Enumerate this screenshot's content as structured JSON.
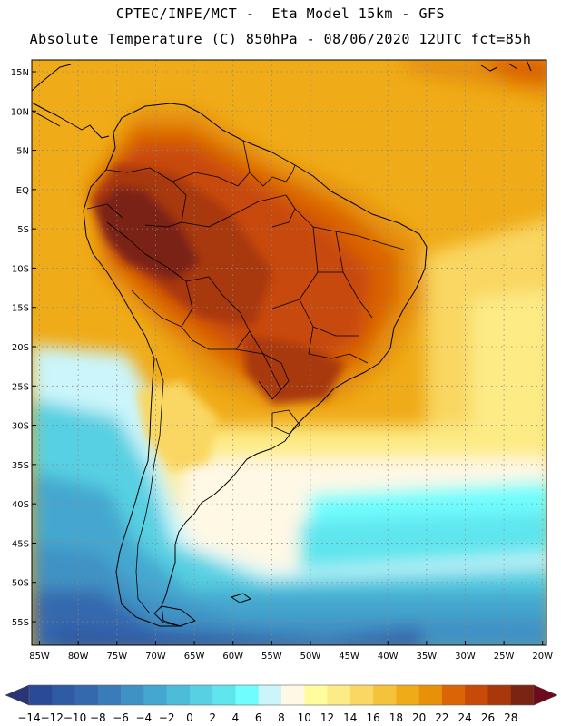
{
  "header": {
    "line1": "CPTEC/INPE/MCT -  Eta Model 15km - GFS",
    "line2": "Absolute Temperature (C) 850hPa - 08/06/2020 12UTC fct=85h"
  },
  "map": {
    "lat_range": [
      -58,
      16.5
    ],
    "lon_range": [
      -86,
      -19.5
    ],
    "lat_ticks": [
      {
        "value": 15,
        "label": "15N"
      },
      {
        "value": 10,
        "label": "10N"
      },
      {
        "value": 5,
        "label": "5N"
      },
      {
        "value": 0,
        "label": "EQ"
      },
      {
        "value": -5,
        "label": "5S"
      },
      {
        "value": -10,
        "label": "10S"
      },
      {
        "value": -15,
        "label": "15S"
      },
      {
        "value": -20,
        "label": "20S"
      },
      {
        "value": -25,
        "label": "25S"
      },
      {
        "value": -30,
        "label": "30S"
      },
      {
        "value": -35,
        "label": "35S"
      },
      {
        "value": -40,
        "label": "40S"
      },
      {
        "value": -45,
        "label": "45S"
      },
      {
        "value": -50,
        "label": "50S"
      },
      {
        "value": -55,
        "label": "55S"
      }
    ],
    "lon_ticks": [
      {
        "value": -85,
        "label": "85W"
      },
      {
        "value": -80,
        "label": "80W"
      },
      {
        "value": -75,
        "label": "75W"
      },
      {
        "value": -70,
        "label": "70W"
      },
      {
        "value": -65,
        "label": "65W"
      },
      {
        "value": -60,
        "label": "60W"
      },
      {
        "value": -55,
        "label": "55W"
      },
      {
        "value": -50,
        "label": "50W"
      },
      {
        "value": -45,
        "label": "45W"
      },
      {
        "value": -40,
        "label": "40W"
      },
      {
        "value": -35,
        "label": "35W"
      },
      {
        "value": -30,
        "label": "30W"
      },
      {
        "value": -25,
        "label": "25W"
      },
      {
        "value": -20,
        "label": "20W"
      }
    ]
  },
  "colorbar": {
    "low_color": "#2a3578",
    "high_color": "#6e0a1e",
    "bins": [
      {
        "label": "-14",
        "color": "#2a4a97"
      },
      {
        "label": "-12",
        "color": "#2f5aa4"
      },
      {
        "label": "-10",
        "color": "#3469ae"
      },
      {
        "label": "-8",
        "color": "#3a7cba"
      },
      {
        "label": "-6",
        "color": "#3f92c4"
      },
      {
        "label": "-4",
        "color": "#44a7cf"
      },
      {
        "label": "-2",
        "color": "#4cbcd9"
      },
      {
        "label": "0",
        "color": "#56d0e2"
      },
      {
        "label": "2",
        "color": "#5ee5ee"
      },
      {
        "label": "4",
        "color": "#6ffdfd"
      },
      {
        "label": "6",
        "color": "#cbf5fb"
      },
      {
        "label": "8",
        "color": "#fff8e5"
      },
      {
        "label": "10",
        "color": "#fffc9e"
      },
      {
        "label": "12",
        "color": "#fdeb86"
      },
      {
        "label": "14",
        "color": "#f9d762"
      },
      {
        "label": "16",
        "color": "#f5c23b"
      },
      {
        "label": "18",
        "color": "#f0ab18"
      },
      {
        "label": "20",
        "color": "#e69107"
      },
      {
        "label": "22",
        "color": "#db6406"
      },
      {
        "label": "24",
        "color": "#c84a08"
      },
      {
        "label": "26",
        "color": "#a8380c"
      },
      {
        "label": "28",
        "color": "#7a2414"
      }
    ],
    "tick_labels": [
      "-14",
      "-12",
      "-10",
      "-8",
      "-6",
      "-4",
      "-2",
      "0",
      "2",
      "4",
      "6",
      "8",
      "10",
      "12",
      "14",
      "16",
      "18",
      "20",
      "22",
      "24",
      "26",
      "28"
    ]
  }
}
